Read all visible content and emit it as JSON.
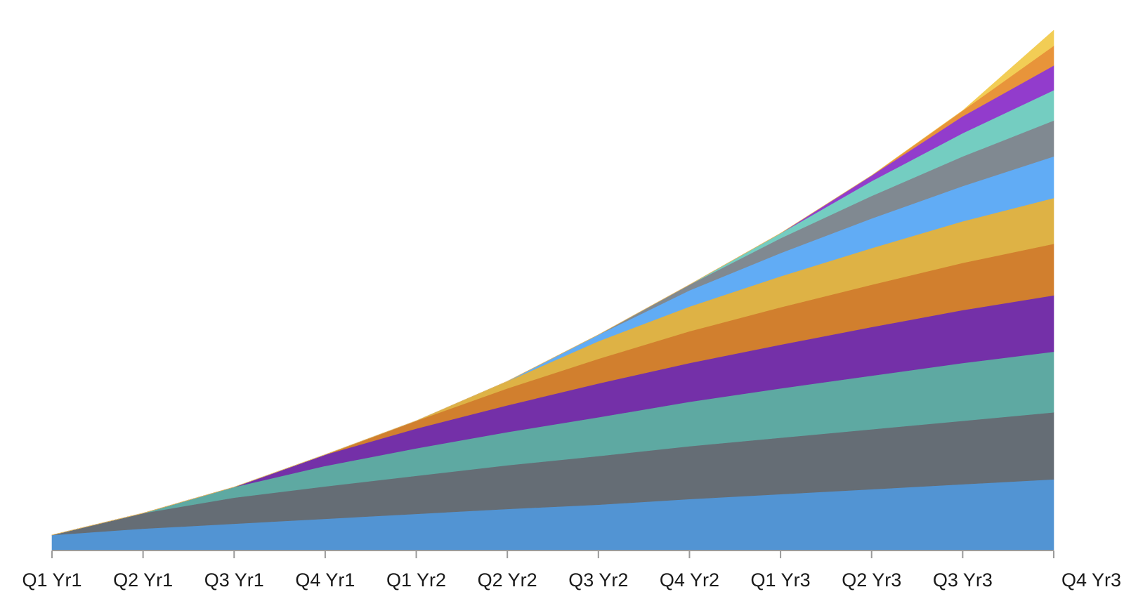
{
  "chart_data": {
    "type": "area",
    "stacked": true,
    "title": "",
    "xlabel": "",
    "ylabel": "",
    "y_axis_visible": false,
    "grid": false,
    "legend": "none",
    "categories": [
      "Q1 Yr1",
      "Q2 Yr1",
      "Q3 Yr1",
      "Q4 Yr1",
      "Q1 Yr2",
      "Q2 Yr2",
      "Q3 Yr2",
      "Q4 Yr2",
      "Q1 Yr3",
      "Q2 Yr3",
      "Q3 Yr3",
      "Q4 Yr3"
    ],
    "ylim": [
      0,
      750
    ],
    "series": [
      {
        "color": "#5294d3",
        "values": [
          21,
          30,
          37,
          44,
          51,
          58,
          64,
          72,
          79,
          86,
          93,
          100
        ]
      },
      {
        "color": "#656d75",
        "values": [
          0,
          22,
          37,
          46,
          54,
          62,
          69,
          75,
          80,
          85,
          90,
          95
        ]
      },
      {
        "color": "#5ea9a2",
        "values": [
          0,
          0,
          15,
          29,
          39,
          47,
          55,
          63,
          70,
          76,
          82,
          86
        ]
      },
      {
        "color": "#7430a8",
        "values": [
          0,
          0,
          0,
          16,
          28,
          38,
          48,
          55,
          62,
          69,
          75,
          80
        ]
      },
      {
        "color": "#d17f2e",
        "values": [
          0,
          0,
          0,
          0,
          11,
          24,
          35,
          45,
          53,
          60,
          67,
          73
        ]
      },
      {
        "color": "#deb245",
        "values": [
          0,
          0,
          0,
          0,
          0,
          10,
          25,
          35,
          44,
          52,
          59,
          65
        ]
      },
      {
        "color": "#61acf5",
        "values": [
          0,
          0,
          0,
          0,
          0,
          0,
          9,
          23,
          33,
          42,
          50,
          59
        ]
      },
      {
        "color": "#808991",
        "values": [
          0,
          0,
          0,
          0,
          0,
          0,
          0,
          8,
          21,
          32,
          42,
          51
        ]
      },
      {
        "color": "#74cdc1",
        "values": [
          0,
          0,
          0,
          0,
          0,
          0,
          0,
          0,
          7,
          21,
          33,
          43
        ]
      },
      {
        "color": "#923ccc",
        "values": [
          0,
          0,
          0,
          0,
          0,
          0,
          0,
          0,
          0,
          8,
          24,
          35
        ]
      },
      {
        "color": "#e8943a",
        "values": [
          0,
          0,
          0,
          0,
          0,
          0,
          0,
          0,
          0,
          0,
          8,
          28
        ]
      },
      {
        "color": "#f2cd55",
        "values": [
          0,
          0,
          0,
          0,
          0,
          0,
          0,
          0,
          0,
          0,
          0,
          22
        ]
      }
    ]
  }
}
